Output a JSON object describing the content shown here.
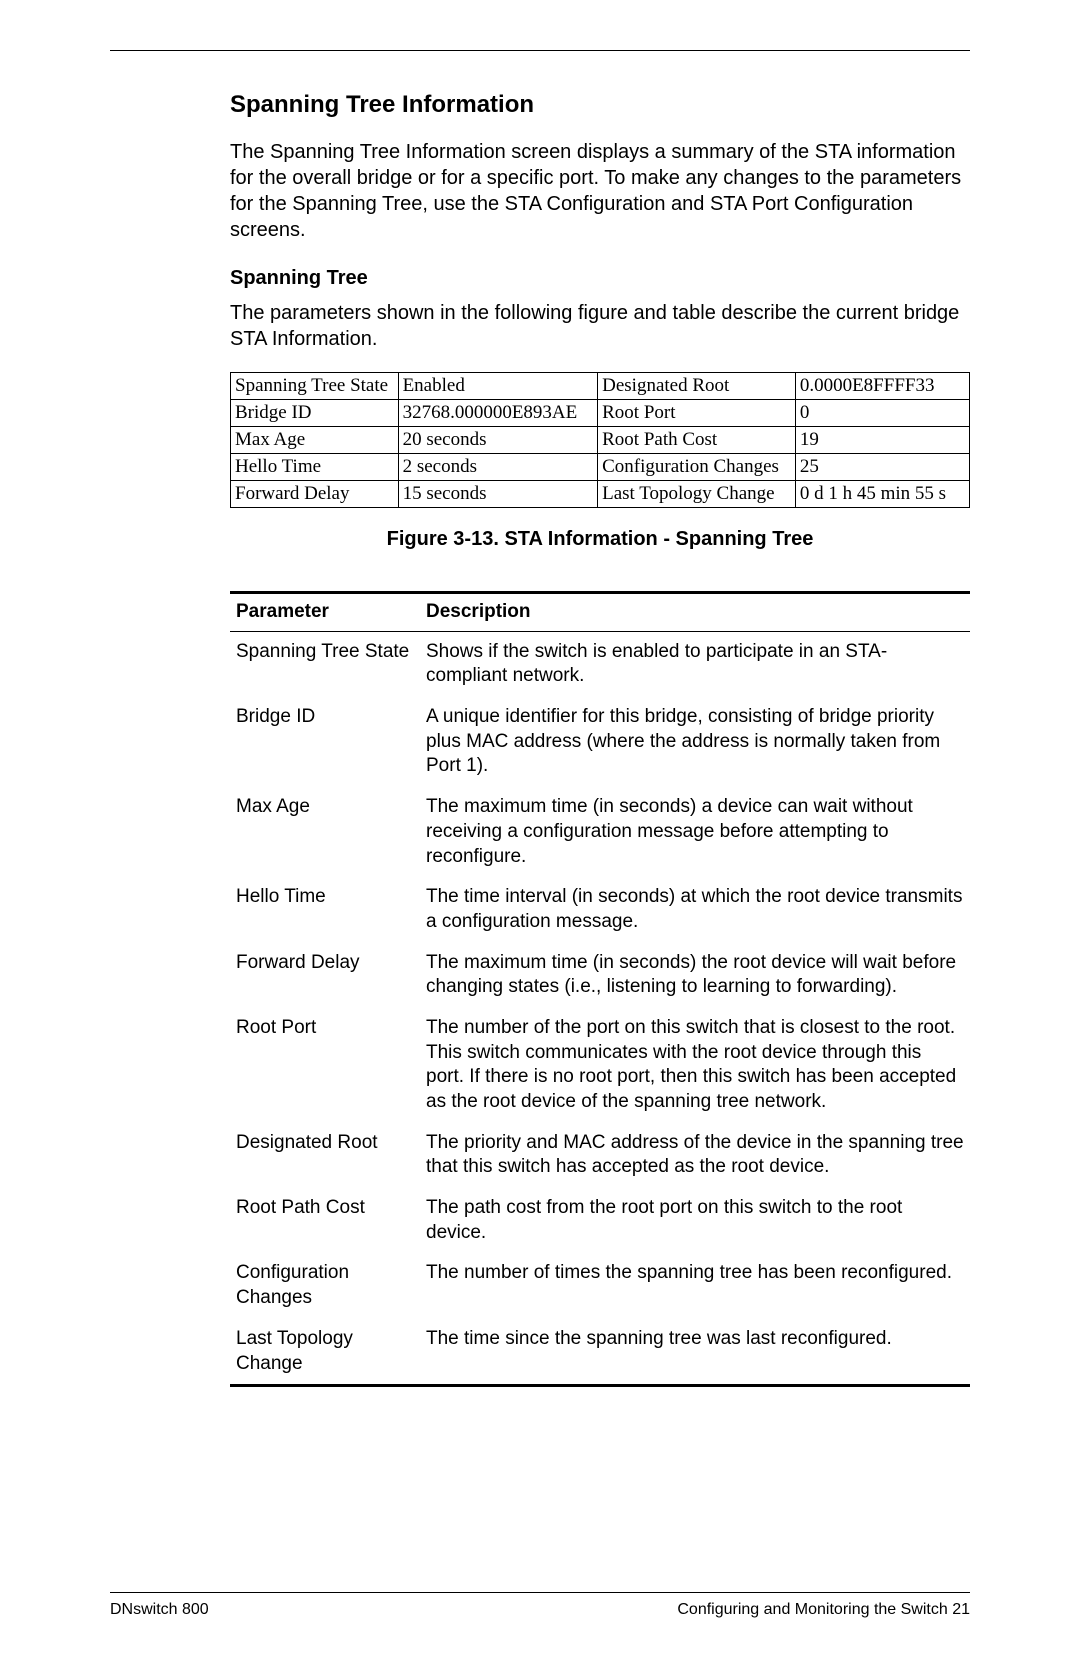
{
  "heading": "Spanning Tree Information",
  "intro": "The Spanning Tree Information screen displays a summary of the STA information for the overall bridge or for a specific port. To make any changes to the parameters for the Spanning Tree, use the STA Configuration and STA Port Configuration screens.",
  "subheading": "Spanning Tree",
  "sub_intro": "The parameters shown in the following figure and table describe the current bridge STA Information.",
  "info_table": {
    "col_widths": [
      "170px",
      "200px",
      "200px",
      "175px"
    ],
    "rows": [
      [
        "Spanning Tree State",
        "Enabled",
        "Designated Root",
        "0.0000E8FFFF33"
      ],
      [
        "Bridge ID",
        "32768.000000E893AE",
        "Root Port",
        "0"
      ],
      [
        "Max Age",
        "20 seconds",
        "Root Path Cost",
        "19"
      ],
      [
        "Hello Time",
        "2 seconds",
        "Configuration Changes",
        "25"
      ],
      [
        "Forward Delay",
        "15 seconds",
        "Last Topology Change",
        "0 d 1 h 45 min 55 s"
      ]
    ]
  },
  "figure_caption": "Figure 3-13.  STA Information -  Spanning Tree",
  "param_table": {
    "headers": [
      "Parameter",
      "Description"
    ],
    "rows": [
      [
        "Spanning Tree State",
        "Shows if the switch is enabled to participate in an STA-compliant network."
      ],
      [
        "Bridge ID",
        "A unique identifier for this bridge, consisting of bridge priority plus MAC address (where the address is normally taken from Port 1)."
      ],
      [
        "Max Age",
        "The maximum time (in seconds) a device can wait without receiving a configuration message before attempting to reconfigure."
      ],
      [
        "Hello Time",
        "The time interval (in seconds) at which the root device transmits a configuration message."
      ],
      [
        "Forward Delay",
        "The maximum time (in seconds) the root device will wait before changing states (i.e., listening to learning to forwarding)."
      ],
      [
        "Root Port",
        "The number of the port on this switch that is closest to the root. This switch communicates with the root device through this port. If there is no root port, then this switch has been accepted as the root device of the spanning tree network."
      ],
      [
        "Designated Root",
        "The priority and MAC address of the device in the spanning tree that this switch has accepted as the root device."
      ],
      [
        "Root Path Cost",
        "The path cost from the root port on this switch to the root device."
      ],
      [
        "Configuration Changes",
        "The number of times the spanning tree has been reconfigured."
      ],
      [
        "Last Topology Change",
        "The time since the spanning tree was last reconfigured."
      ]
    ]
  },
  "footer": {
    "left": "DNswitch 800",
    "right": "Configuring and Monitoring the Switch  21"
  }
}
